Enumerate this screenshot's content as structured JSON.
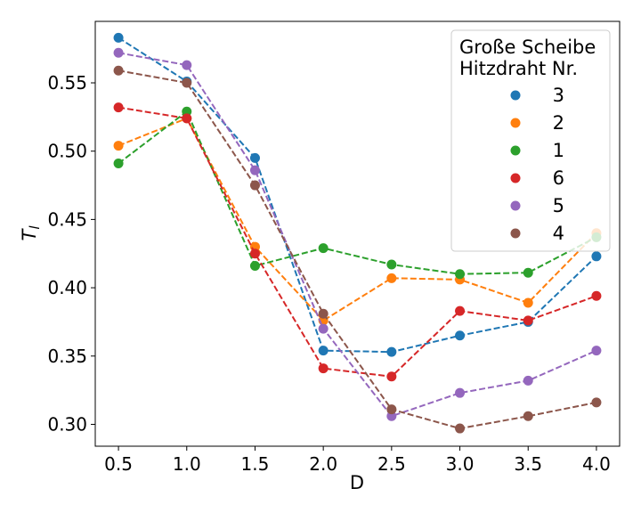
{
  "chart_data": {
    "type": "line",
    "xlabel": "D",
    "ylabel": "T",
    "ylabel_subscript": "l",
    "xlim": [
      0.33,
      4.17
    ],
    "ylim": [
      0.284,
      0.595
    ],
    "xticks": [
      "0.5",
      "1.0",
      "1.5",
      "2.0",
      "2.5",
      "3.0",
      "3.5",
      "4.0"
    ],
    "yticks": [
      "0.30",
      "0.35",
      "0.40",
      "0.45",
      "0.50",
      "0.55"
    ],
    "x": [
      0.5,
      1.0,
      1.5,
      2.0,
      2.5,
      3.0,
      3.5,
      4.0
    ],
    "line_style": "dashed",
    "marker": "circle",
    "legend_title": [
      "Große Scheibe",
      "Hitzdraht Nr."
    ],
    "legend_position": "top-right",
    "series": [
      {
        "name": "3",
        "color": "#1f77b4",
        "values": [
          0.583,
          0.551,
          0.495,
          0.354,
          0.353,
          0.365,
          0.375,
          0.423
        ]
      },
      {
        "name": "2",
        "color": "#ff7f0e",
        "values": [
          0.504,
          0.524,
          0.43,
          0.376,
          0.407,
          0.406,
          0.389,
          0.44
        ]
      },
      {
        "name": "1",
        "color": "#2ca02c",
        "values": [
          0.491,
          0.529,
          0.416,
          0.429,
          0.417,
          0.41,
          0.411,
          0.437
        ]
      },
      {
        "name": "6",
        "color": "#d62728",
        "values": [
          0.532,
          0.524,
          0.425,
          0.341,
          0.335,
          0.383,
          0.376,
          0.394
        ]
      },
      {
        "name": "5",
        "color": "#9467bd",
        "values": [
          0.572,
          0.563,
          0.486,
          0.37,
          0.306,
          0.323,
          0.332,
          0.354
        ]
      },
      {
        "name": "4",
        "color": "#8c564b",
        "values": [
          0.559,
          0.55,
          0.475,
          0.381,
          0.311,
          0.297,
          0.306,
          0.316
        ]
      }
    ]
  }
}
